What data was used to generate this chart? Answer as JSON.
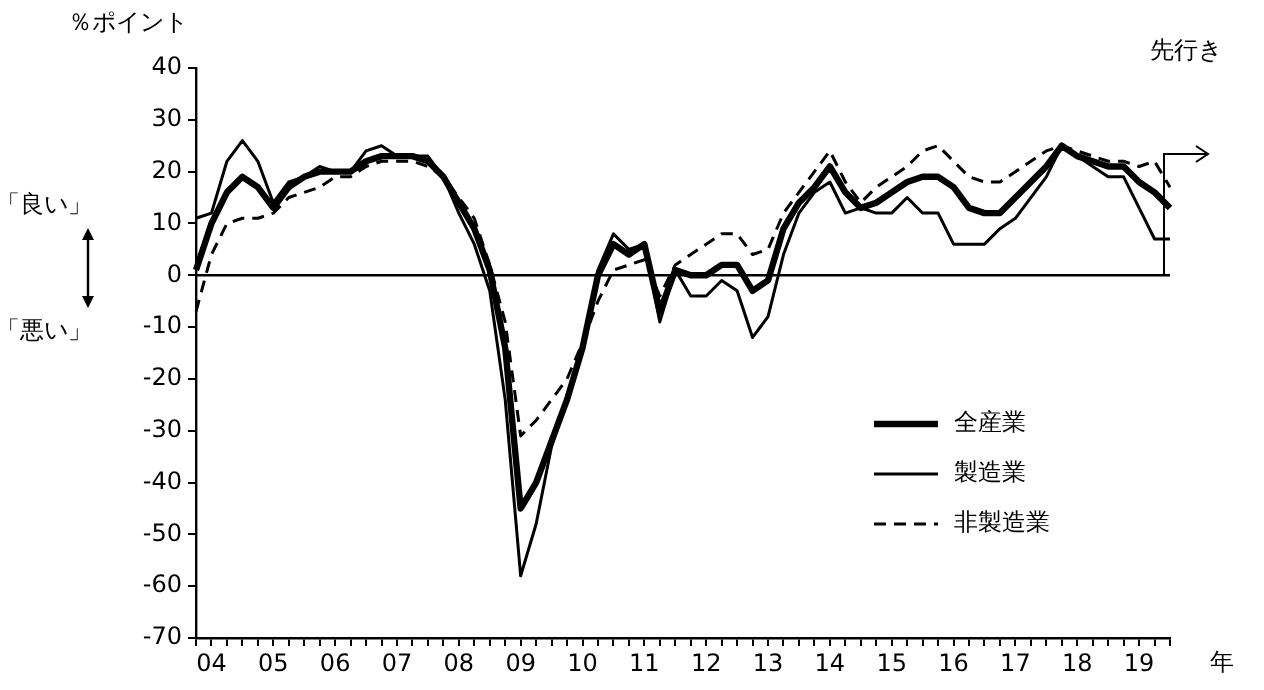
{
  "chart_data": {
    "type": "line",
    "ylabel": "％ポイント",
    "xlabel": "年",
    "categories": [
      null,
      "04",
      null,
      null,
      null,
      "05",
      null,
      null,
      null,
      "06",
      null,
      null,
      null,
      "07",
      null,
      null,
      null,
      "08",
      null,
      null,
      null,
      "09",
      null,
      null,
      null,
      "10",
      null,
      null,
      null,
      "11",
      null,
      null,
      null,
      "12",
      null,
      null,
      null,
      "13",
      null,
      null,
      null,
      "14",
      null,
      null,
      null,
      "15",
      null,
      null,
      null,
      "16",
      null,
      null,
      null,
      "17",
      null,
      null,
      null,
      "18",
      null,
      null,
      null,
      "19",
      null,
      null
    ],
    "series": [
      {
        "name": "全産業",
        "color": "#000000",
        "line_style": "solid",
        "values": [
          1,
          10,
          16,
          19,
          17,
          13,
          17,
          19,
          20,
          20,
          20,
          22,
          23,
          23,
          23,
          22,
          19,
          14,
          9,
          1,
          -14,
          -45,
          -40,
          -32,
          -24,
          -14,
          0,
          6,
          4,
          6,
          -7,
          1,
          0,
          0,
          2,
          2,
          -3,
          -1,
          9,
          14,
          17,
          21,
          16,
          13,
          14,
          16,
          18,
          19,
          19,
          17,
          13,
          12,
          12,
          15,
          18,
          21,
          25,
          23,
          22,
          21,
          21,
          18,
          16,
          13
        ]
      },
      {
        "name": "製造業",
        "color": "#000000",
        "line_style": "solid",
        "values": [
          11,
          12,
          22,
          26,
          22,
          14,
          18,
          19,
          21,
          20,
          20,
          24,
          25,
          23,
          23,
          23,
          19,
          12,
          6,
          -3,
          -24,
          -58,
          -48,
          -33,
          -24,
          -14,
          1,
          8,
          5,
          6,
          -9,
          1,
          -4,
          -4,
          -1,
          -3,
          -12,
          -8,
          4,
          12,
          16,
          18,
          12,
          13,
          12,
          12,
          15,
          12,
          12,
          6,
          6,
          6,
          9,
          11,
          15,
          19,
          25,
          23,
          21,
          19,
          19,
          13,
          7,
          7
        ]
      },
      {
        "name": "非製造業",
        "color": "#000000",
        "line_style": "dashed",
        "values": [
          -7,
          4,
          10,
          11,
          11,
          12,
          15,
          16,
          17,
          19,
          19,
          21,
          22,
          22,
          22,
          21,
          19,
          15,
          11,
          2,
          -9,
          -31,
          -28,
          -24,
          -20,
          -13,
          -5,
          1,
          2,
          3,
          -4,
          2,
          4,
          6,
          8,
          8,
          4,
          5,
          12,
          16,
          20,
          24,
          18,
          14,
          17,
          19,
          21,
          24,
          25,
          22,
          19,
          18,
          18,
          20,
          22,
          24,
          25,
          24,
          23,
          22,
          22,
          21,
          22,
          17
        ]
      }
    ],
    "ylim": [
      -70,
      40
    ],
    "yticks": [
      -70,
      -60,
      -50,
      -40,
      -30,
      -20,
      -10,
      0,
      10,
      20,
      30,
      40
    ],
    "marker": "none",
    "legend": "right",
    "ref_lines": [
      {
        "axis": "y",
        "value": 0
      }
    ],
    "annotations": [
      "先行き",
      "「良い」",
      "「悪い」"
    ]
  }
}
